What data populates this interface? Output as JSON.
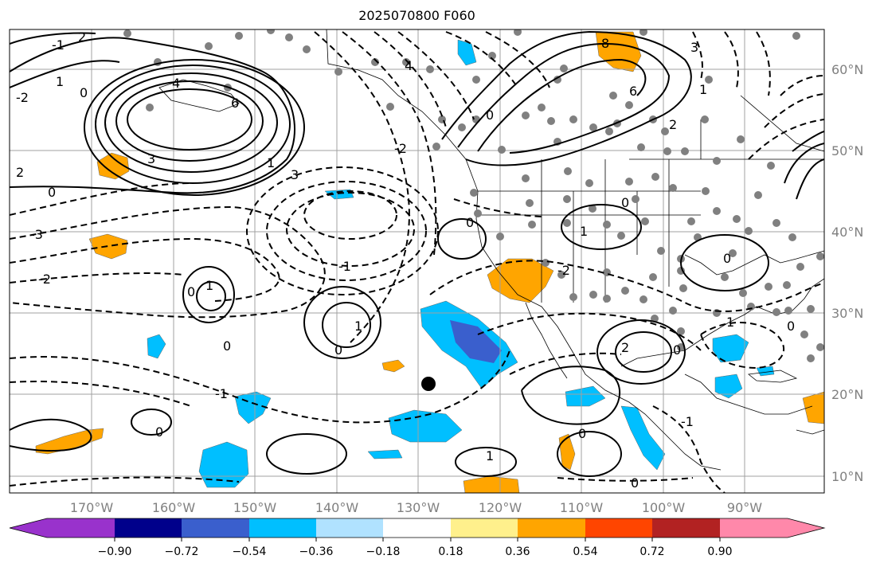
{
  "title": "2025070800 F060",
  "map": {
    "lon_labels": [
      "170°W",
      "160°W",
      "150°W",
      "140°W",
      "130°W",
      "120°W",
      "110°W",
      "100°W",
      "90°W"
    ],
    "lat_labels": [
      "60°N",
      "50°N",
      "40°N",
      "30°N",
      "20°N",
      "10°N"
    ],
    "contour_labels": [
      "2",
      "-2",
      "1",
      "0",
      "-1",
      "4",
      "6",
      "3",
      "0",
      "-3",
      "2",
      "-2",
      "1",
      "0",
      "1",
      "0",
      "-1",
      "0",
      "-1",
      "0",
      "1",
      "3",
      "4",
      "6",
      "8",
      "3",
      "2",
      "1",
      "0",
      "-2",
      "0",
      "1",
      "0",
      "-2",
      "0",
      "1",
      "0",
      "0",
      "-1",
      "2",
      "0",
      "1",
      "0"
    ],
    "colors": {
      "orange": "#ffa500",
      "sky": "#00bfff",
      "blue": "#3a5fcd",
      "contour": "#000000",
      "grid": "#a0a0a0",
      "station": "#808080"
    }
  },
  "colorbar": {
    "tick_labels": [
      "−0.90",
      "−0.72",
      "−0.54",
      "−0.36",
      "−0.18",
      "0.18",
      "0.36",
      "0.54",
      "0.72",
      "0.90"
    ],
    "colors": [
      "#9932cc",
      "#00008b",
      "#3a5fcd",
      "#00bfff",
      "#b0e2ff",
      "#ffffff",
      "#fff08c",
      "#ffa500",
      "#ff4500",
      "#b22222",
      "#ff88aa"
    ]
  }
}
